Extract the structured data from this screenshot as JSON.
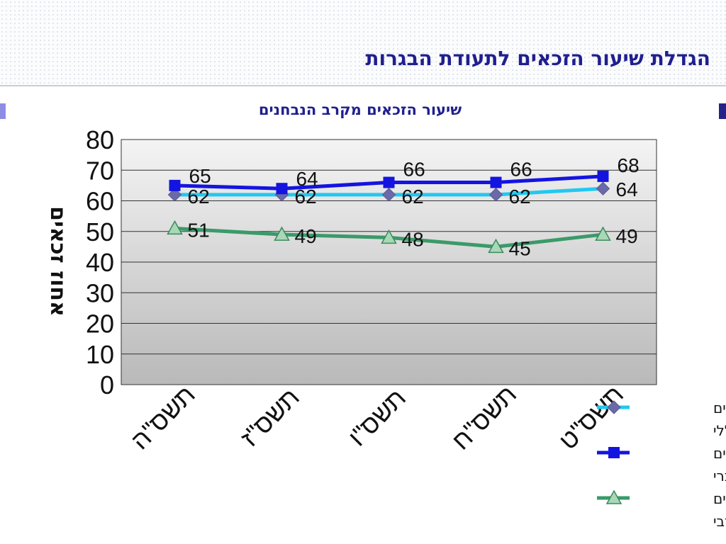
{
  "slide": {
    "title": "הגדלת שיעור הזכאים לתעודת הבגרות"
  },
  "chart_data": {
    "type": "line",
    "title": "שיעור הזכאים מקרב הנבחנים",
    "ylabel": "אחוז זכאים",
    "xlabel": "",
    "categories": [
      "תשס\"ה",
      "תשס\"ז",
      "תשס\"ו",
      "תשס\"ח",
      "תשס\"ט"
    ],
    "ylim": [
      0,
      80
    ],
    "yticks": [
      "0",
      "10",
      "20",
      "30",
      "40",
      "50",
      "60",
      "70",
      "80"
    ],
    "grid": true,
    "legend_position": "bottom-right",
    "series": [
      {
        "name_lines": [
          "אחוז זכאים",
          "- כללי"
        ],
        "values": [
          62,
          62,
          62,
          62,
          64
        ],
        "labels": [
          "62",
          "62",
          "62",
          "62",
          "64"
        ],
        "line_color": "#22c8f0",
        "marker": "diamond",
        "marker_color": "#6a6aa8"
      },
      {
        "name_lines": [
          "אחוז זכאים",
          "- חינוך עברי"
        ],
        "values": [
          65,
          64,
          66,
          66,
          68
        ],
        "labels": [
          "65",
          "64",
          "66",
          "66",
          "68"
        ],
        "line_color": "#1414e0",
        "marker": "square",
        "marker_color": "#1414e0"
      },
      {
        "name_lines": [
          "אחוז זכאים",
          "- חינוך ערבי"
        ],
        "values": [
          51,
          49,
          48,
          45,
          49
        ],
        "labels": [
          "51",
          "49",
          "48",
          "45",
          "49"
        ],
        "line_color": "#3a9a6a",
        "marker": "triangle",
        "marker_color": "#a8d8b8"
      }
    ]
  }
}
